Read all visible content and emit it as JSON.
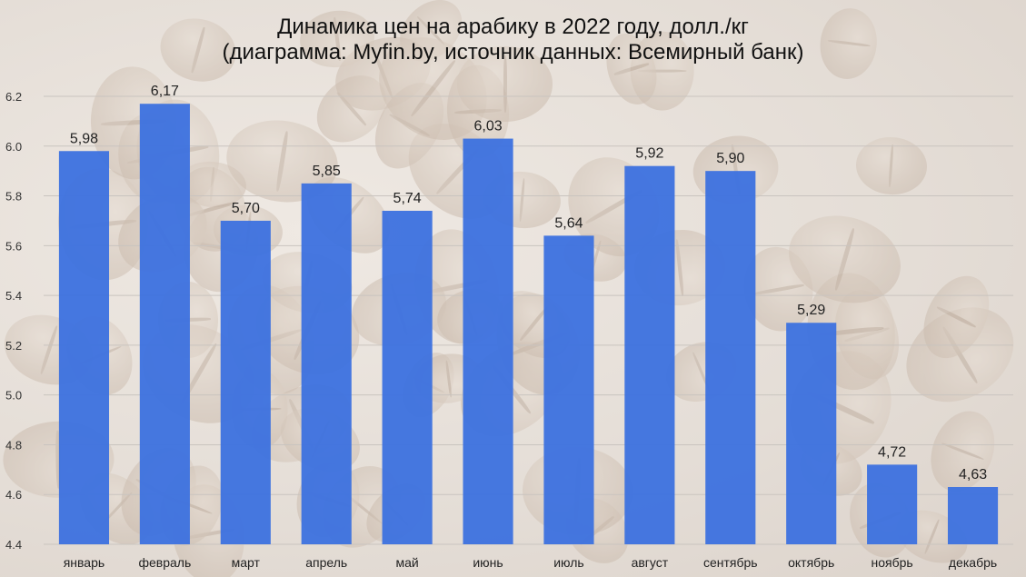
{
  "chart_data": {
    "type": "bar",
    "title_line1": "Динамика цен на арабику в 2022 году, долл./кг",
    "title_line2": "(диаграмма: Myfin.by, источник данных: Всемирный банк)",
    "categories": [
      "январь",
      "февраль",
      "март",
      "апрель",
      "май",
      "июнь",
      "июль",
      "август",
      "сентябрь",
      "октябрь",
      "ноябрь",
      "декабрь"
    ],
    "values": [
      5.98,
      6.17,
      5.7,
      5.85,
      5.74,
      6.03,
      5.64,
      5.92,
      5.9,
      5.29,
      4.72,
      4.63
    ],
    "value_labels": [
      "5,98",
      "6,17",
      "5,70",
      "5,85",
      "5,74",
      "6,03",
      "5,64",
      "5,92",
      "5,90",
      "5,29",
      "4,72",
      "4,63"
    ],
    "ylim": [
      4.4,
      6.2
    ],
    "yticks": [
      "4.4",
      "4.6",
      "4.8",
      "5.0",
      "5.2",
      "5.4",
      "5.6",
      "5.8",
      "6.0",
      "6.2"
    ],
    "grid": true,
    "bar_color": "#3c71df"
  }
}
